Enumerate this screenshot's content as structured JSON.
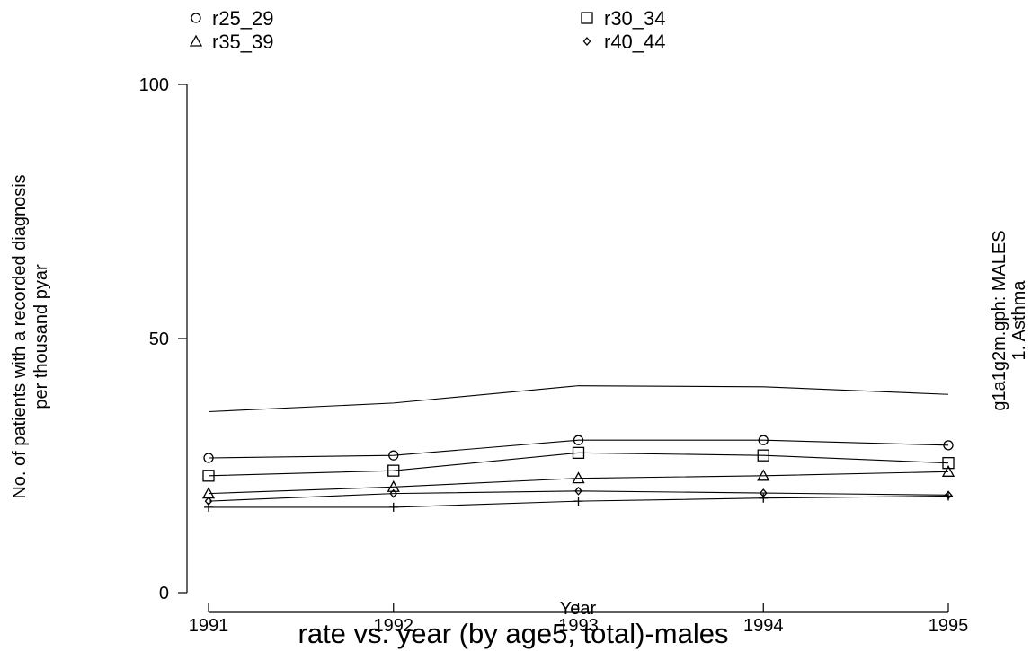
{
  "chart_data": {
    "type": "line",
    "x": [
      1991,
      1992,
      1993,
      1994,
      1995
    ],
    "x_tick_labels": [
      "1991",
      "1992",
      "1993",
      "1994",
      "1995"
    ],
    "y_ticks": [
      0,
      50,
      100
    ],
    "y_tick_labels": [
      "0",
      "50",
      "100"
    ],
    "ylim": [
      0,
      100
    ],
    "xlim": [
      1991,
      1995
    ],
    "ylabel_line1": "No. of patients with a recorded diagnosis",
    "ylabel_line2": "per thousand pyar",
    "xlabel": "Year",
    "caption": "rate vs. year (by age5, total)-males",
    "side_title_line1": "g1a1g2m.gph: MALES",
    "side_title_line2": "1.  Asthma",
    "legend_position": "top",
    "grid": false,
    "series": [
      {
        "name": "r25_29",
        "marker": "circle",
        "values": [
          26.5,
          27.0,
          30.0,
          30.0,
          29.0
        ]
      },
      {
        "name": "r30_34",
        "marker": "square",
        "values": [
          23.0,
          24.0,
          27.5,
          27.0,
          25.5
        ]
      },
      {
        "name": "r35_39",
        "marker": "triangle",
        "values": [
          19.5,
          20.8,
          22.5,
          23.0,
          23.8
        ]
      },
      {
        "name": "r40_44",
        "marker": "diamond",
        "values": [
          18.0,
          19.5,
          20.0,
          19.6,
          19.2
        ]
      },
      {
        "marker": "plus",
        "values": [
          16.8,
          16.8,
          18.0,
          18.6,
          19.0
        ]
      },
      {
        "marker": "none",
        "values": [
          35.6,
          37.3,
          40.7,
          40.5,
          39.0
        ]
      }
    ]
  }
}
